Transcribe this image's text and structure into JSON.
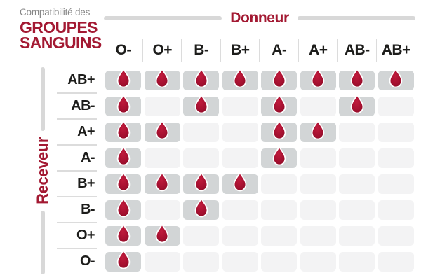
{
  "title": {
    "pretitle": "Compatibilité des",
    "line1": "GROUPES",
    "line2": "SANGUINS"
  },
  "axis": {
    "donor_label": "Donneur",
    "receiver_label": "Receveur"
  },
  "chart_data": {
    "type": "table",
    "title": "Compatibilité des GROUPES SANGUINS",
    "x_axis_label": "Donneur",
    "y_axis_label": "Receveur",
    "columns": [
      "O-",
      "O+",
      "B-",
      "B+",
      "A-",
      "A+",
      "AB-",
      "AB+"
    ],
    "rows": [
      "AB+",
      "AB-",
      "A+",
      "A-",
      "B+",
      "B-",
      "O+",
      "O-"
    ],
    "matrix": [
      [
        1,
        1,
        1,
        1,
        1,
        1,
        1,
        1
      ],
      [
        1,
        0,
        1,
        0,
        1,
        0,
        1,
        0
      ],
      [
        1,
        1,
        0,
        0,
        1,
        1,
        0,
        0
      ],
      [
        1,
        0,
        0,
        0,
        1,
        0,
        0,
        0
      ],
      [
        1,
        1,
        1,
        1,
        0,
        0,
        0,
        0
      ],
      [
        1,
        0,
        1,
        0,
        0,
        0,
        0,
        0
      ],
      [
        1,
        1,
        0,
        0,
        0,
        0,
        0,
        0
      ],
      [
        1,
        0,
        0,
        0,
        0,
        0,
        0,
        0
      ]
    ]
  },
  "icons": {
    "compatible_marker": "blood-drop-icon"
  },
  "colors": {
    "accent": "#A31932",
    "text": "#1D1D1B",
    "pretitle": "#868686",
    "bar": "#D8D8D8",
    "line": "#DCDCDC",
    "cellOn": "#D2D5D6",
    "cellOff": "#F3F3F4",
    "dropLight": "#C01B3C",
    "dropMain": "#A51030",
    "dropDark": "#8C0D26"
  }
}
